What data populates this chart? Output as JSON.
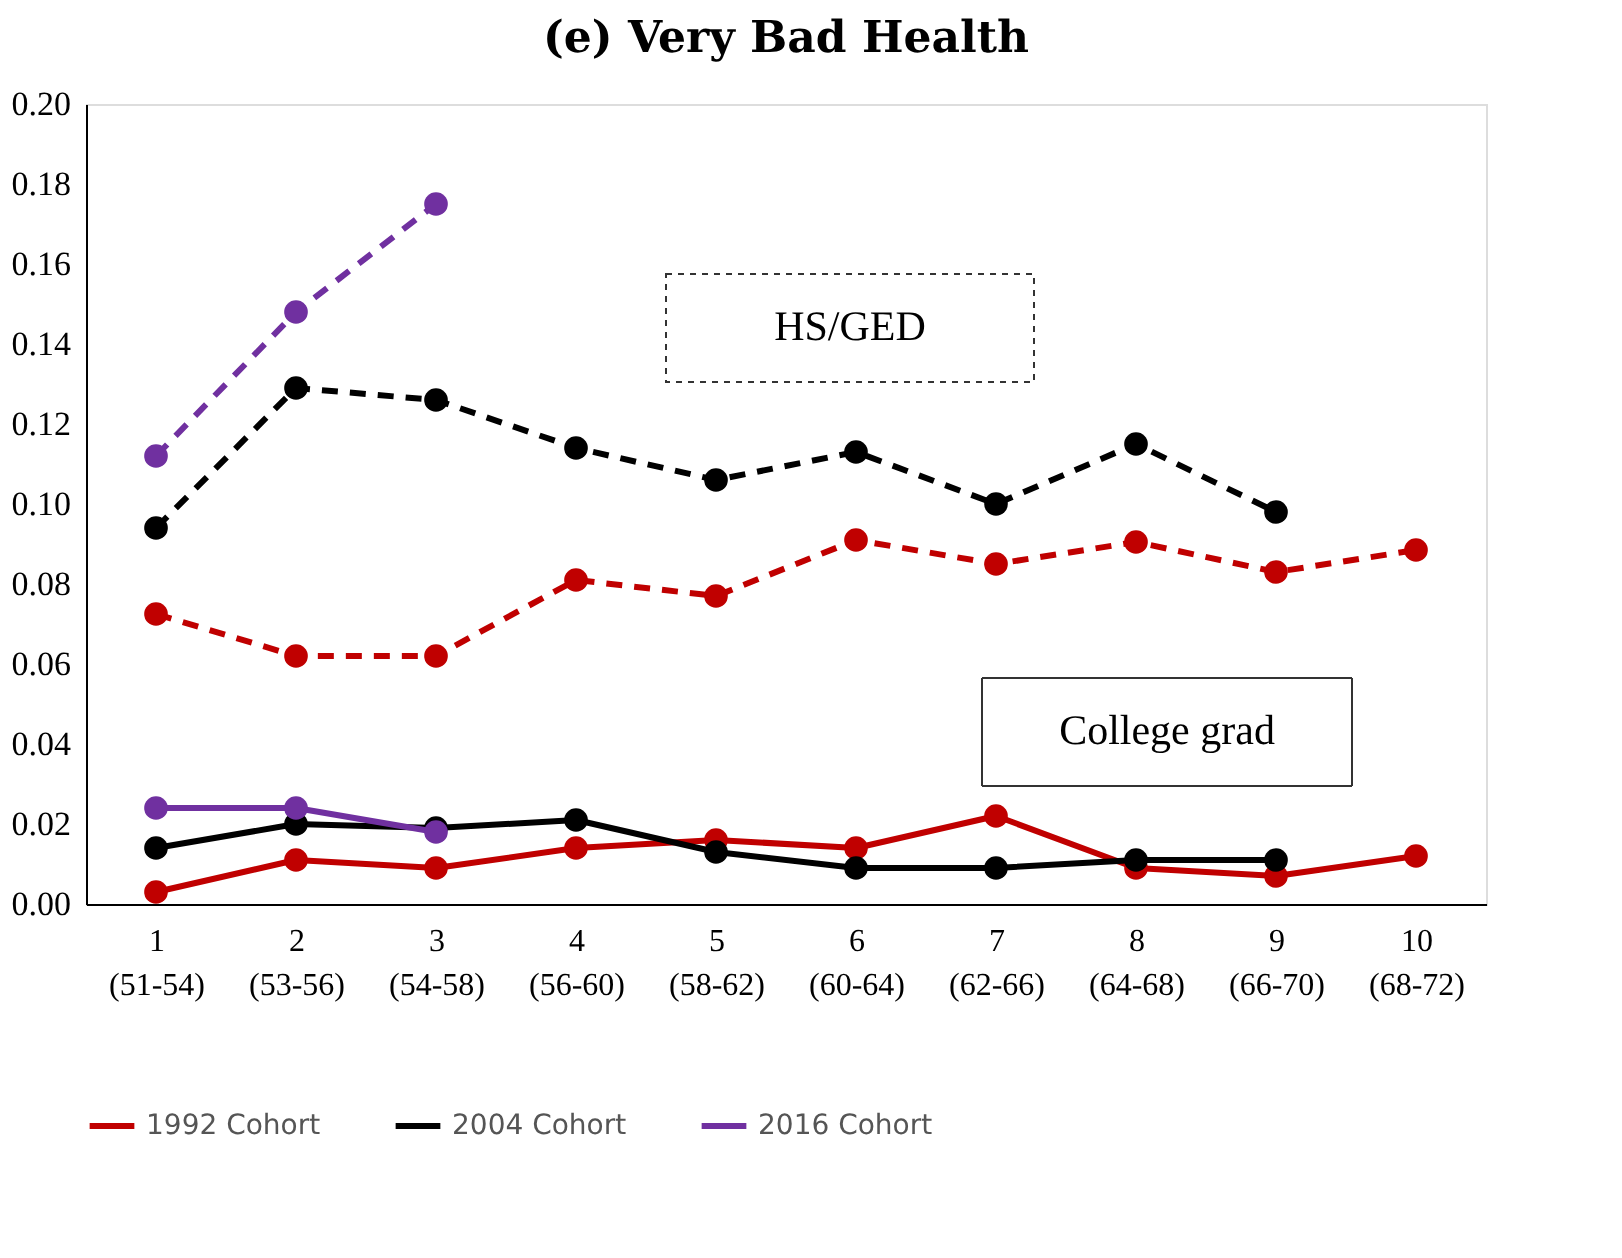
{
  "chart_data": {
    "type": "line",
    "title": "(e) Very Bad Health",
    "categories": [
      "1\n(51-54)",
      "2\n(53-56)",
      "3\n(54-58)",
      "4\n(56-60)",
      "5\n(58-62)",
      "6\n(60-64)",
      "7\n(62-66)",
      "8\n(64-68)",
      "9\n(66-70)",
      "10\n(68-72)"
    ],
    "ylim": [
      0,
      0.2
    ],
    "yticks": [
      {
        "value": 0,
        "label": "0.00"
      },
      {
        "value": 0.02,
        "label": "0.02"
      },
      {
        "value": 0.04,
        "label": "0.04"
      },
      {
        "value": 0.06,
        "label": "0.06"
      },
      {
        "value": 0.08,
        "label": "0.08"
      },
      {
        "value": 0.1,
        "label": "0.10"
      },
      {
        "value": 0.12,
        "label": "0.12"
      },
      {
        "value": 0.14,
        "label": "0.14"
      },
      {
        "value": 0.16,
        "label": "0.16"
      },
      {
        "value": 0.18,
        "label": "0.18"
      },
      {
        "value": 0.2,
        "label": "0.20"
      }
    ],
    "grid": false,
    "legend": "bottom",
    "marker": "circle",
    "annotations": [
      "HS/GED",
      "College grad"
    ],
    "series": [
      {
        "name": "1992 Cohort",
        "color": "#c00000",
        "line_style": "solid",
        "values": [
          0.003,
          0.011,
          0.009,
          0.014,
          0.016,
          0.014,
          0.022,
          0.009,
          0.007,
          0.012
        ]
      },
      {
        "name": "2004 Cohort",
        "color": "#000000",
        "line_style": "solid",
        "values": [
          0.014,
          0.02,
          0.019,
          0.021,
          0.013,
          0.009,
          0.009,
          0.011,
          0.011,
          null
        ]
      },
      {
        "name": "2016 Cohort",
        "color": "#7030a0",
        "line_style": "solid",
        "values": [
          0.024,
          0.024,
          0.018,
          null,
          null,
          null,
          null,
          null,
          null,
          null
        ]
      },
      {
        "color": "#c00000",
        "line_style": "dashed",
        "values": [
          0.0725,
          0.062,
          0.062,
          0.081,
          0.077,
          0.091,
          0.085,
          0.0905,
          0.083,
          0.0885
        ]
      },
      {
        "color": "#000000",
        "line_style": "dashed",
        "values": [
          0.094,
          0.129,
          0.126,
          0.114,
          0.106,
          0.113,
          0.1,
          0.115,
          0.098,
          null
        ]
      },
      {
        "color": "#7030a0",
        "line_style": "dashed",
        "values": [
          0.112,
          0.148,
          0.175,
          null,
          null,
          null,
          null,
          null,
          null,
          null
        ]
      }
    ]
  }
}
